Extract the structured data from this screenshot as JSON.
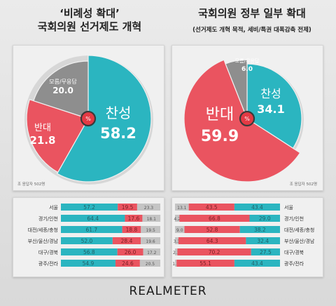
{
  "left_title": "‘비례성 확대’\n국회의원 선거제도 개혁",
  "right_title": "국회의원 정부 일부 확대",
  "right_subtitle": "(선거제도 개혁 목적, 세비/특권 대폭감축 전제)",
  "brand": "REALMETER",
  "left_note": "조 응답자 502명",
  "right_note": "조 응답자 502명",
  "colors": {
    "support": "#2bb5c0",
    "oppose": "#ea5460",
    "unsure": "#8e8e8e"
  },
  "chart_data": [
    {
      "type": "pie",
      "title": "‘비례성 확대’ 국회의원 선거제도 개혁",
      "center_label": "%",
      "slices": [
        {
          "label": "찬성",
          "value": 58.2,
          "color": "#2bb5c0"
        },
        {
          "label": "반대",
          "value": 21.8,
          "color": "#ea5460"
        },
        {
          "label": "모름/무응답",
          "value": 20.0,
          "color": "#8e8e8e"
        }
      ]
    },
    {
      "type": "pie",
      "title": "국회의원 정부 일부 확대",
      "subtitle": "(선거제도 개혁 목적, 세비/특권 대폭감축 전제)",
      "center_label": "%",
      "slices": [
        {
          "label": "찬성",
          "value": 34.1,
          "color": "#2bb5c0"
        },
        {
          "label": "반대",
          "value": 59.9,
          "color": "#ea5460"
        },
        {
          "label": "모름/무응답",
          "value": 6.0,
          "color": "#8e8e8e"
        }
      ]
    },
    {
      "type": "bar",
      "orientation": "horizontal-stacked",
      "categories": [
        "서울",
        "경기/인천",
        "대전/세종/충청",
        "부산/울산/경남",
        "대구/경북",
        "광주/전라"
      ],
      "series": [
        {
          "name": "찬성",
          "values": [
            57.2,
            64.4,
            61.7,
            52.0,
            56.8,
            54.9
          ]
        },
        {
          "name": "반대",
          "values": [
            19.5,
            17.6,
            18.8,
            28.4,
            26.0,
            24.6
          ]
        },
        {
          "name": "모름/무응답",
          "values": [
            23.3,
            18.1,
            19.5,
            19.6,
            17.2,
            20.5
          ]
        }
      ]
    },
    {
      "type": "bar",
      "orientation": "horizontal-stacked",
      "categories": [
        "서울",
        "경기/인천",
        "대전/세종/충청",
        "부산/울산/경남",
        "대구/경북",
        "광주/전라"
      ],
      "series": [
        {
          "name": "모름/무응답",
          "values": [
            13.1,
            4.2,
            9.0,
            3.3,
            2.3,
            1.5
          ]
        },
        {
          "name": "반대",
          "values": [
            43.5,
            66.8,
            52.8,
            64.3,
            70.2,
            55.1
          ]
        },
        {
          "name": "찬성",
          "values": [
            43.4,
            29.0,
            38.2,
            32.4,
            27.5,
            43.4
          ]
        }
      ]
    }
  ]
}
